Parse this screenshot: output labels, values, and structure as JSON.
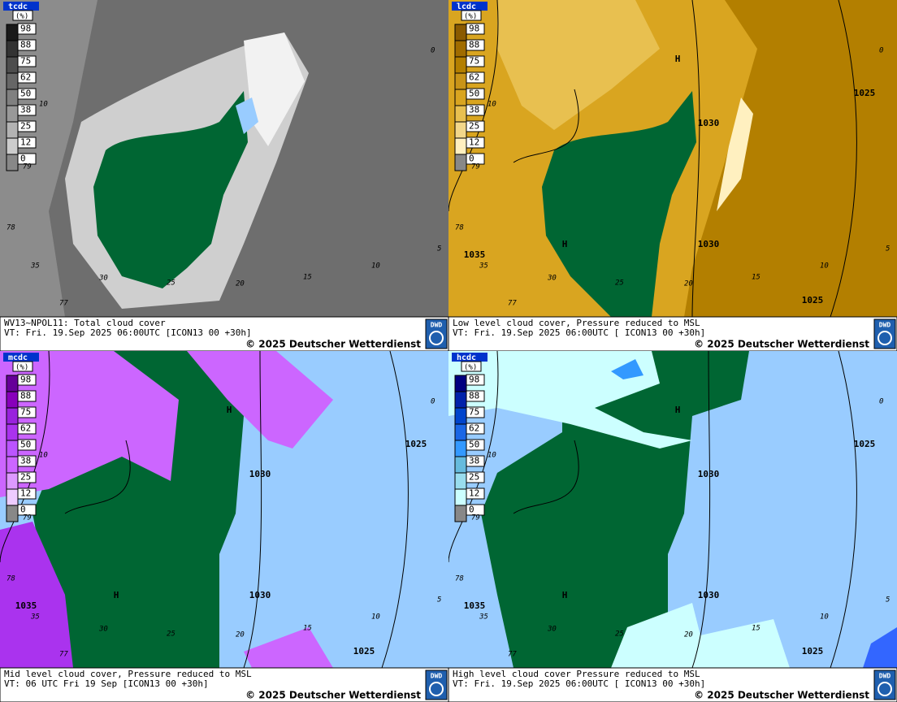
{
  "panels": [
    {
      "label": "tcdc",
      "unit": "(%)",
      "legend": [
        98,
        88,
        75,
        62,
        50,
        38,
        25,
        12,
        0
      ],
      "caption": [
        "WV13~NPOL11: Total cloud cover",
        "VT: Fri. 19.Sep 2025 06:00UTC [ICON13 00  +30h]"
      ],
      "copyright": "© 2025 Deutscher Wetterdienst",
      "logo": "DWD",
      "grid_labels": [
        "0",
        "10",
        "79",
        "78",
        "35",
        "30",
        "25",
        "20",
        "15",
        "10",
        "5",
        "77"
      ]
    },
    {
      "label": "lcdc",
      "unit": "(%)",
      "legend": [
        98,
        88,
        75,
        62,
        50,
        38,
        25,
        12,
        0
      ],
      "caption": [
        "Low level cloud cover, Pressure reduced to MSL",
        "VT: Fri. 19.Sep 2025 06:00UTC [ ICON13 00  +30h]"
      ],
      "copyright": "© 2025 Deutscher Wetterdienst",
      "logo": "DWD",
      "grid_labels": [
        "0",
        "10",
        "79",
        "78",
        "35",
        "30",
        "25",
        "20",
        "15",
        "10",
        "5",
        "77"
      ],
      "isobar_labels": [
        "H",
        "1025",
        "1030",
        "H",
        "1035",
        "1030",
        "1025"
      ]
    },
    {
      "label": "mcdc",
      "unit": "(%)",
      "legend": [
        98,
        88,
        75,
        62,
        50,
        38,
        25,
        12,
        0
      ],
      "caption": [
        "Mid level cloud cover, Pressure reduced to MSL",
        "VT: 06 UTC Fri  19 Sep [ICON13 00 +30h]"
      ],
      "copyright": "© 2025 Deutscher Wetterdienst",
      "logo": "DWD",
      "grid_labels": [
        "0",
        "10",
        "79",
        "78",
        "35",
        "30",
        "25",
        "20",
        "15",
        "10",
        "5",
        "77"
      ],
      "isobar_labels": [
        "H",
        "1025",
        "1030",
        "H",
        "1035",
        "1030",
        "1025"
      ]
    },
    {
      "label": "hcdc",
      "unit": "(%)",
      "legend": [
        98,
        88,
        75,
        62,
        50,
        38,
        25,
        12,
        0
      ],
      "caption": [
        "High level cloud cover Pressure reduced to MSL",
        "VT: Fri. 19.Sep 2025 06:00UTC [ ICON13 00  +30h]"
      ],
      "copyright": "© 2025 Deutscher Wetterdienst",
      "logo": "DWD",
      "grid_labels": [
        "0",
        "10",
        "79",
        "78",
        "35",
        "30",
        "25",
        "20",
        "15",
        "10",
        "5",
        "77"
      ],
      "isobar_labels": [
        "H",
        "1025",
        "1030",
        "H",
        "1035",
        "1030",
        "1025"
      ]
    }
  ]
}
